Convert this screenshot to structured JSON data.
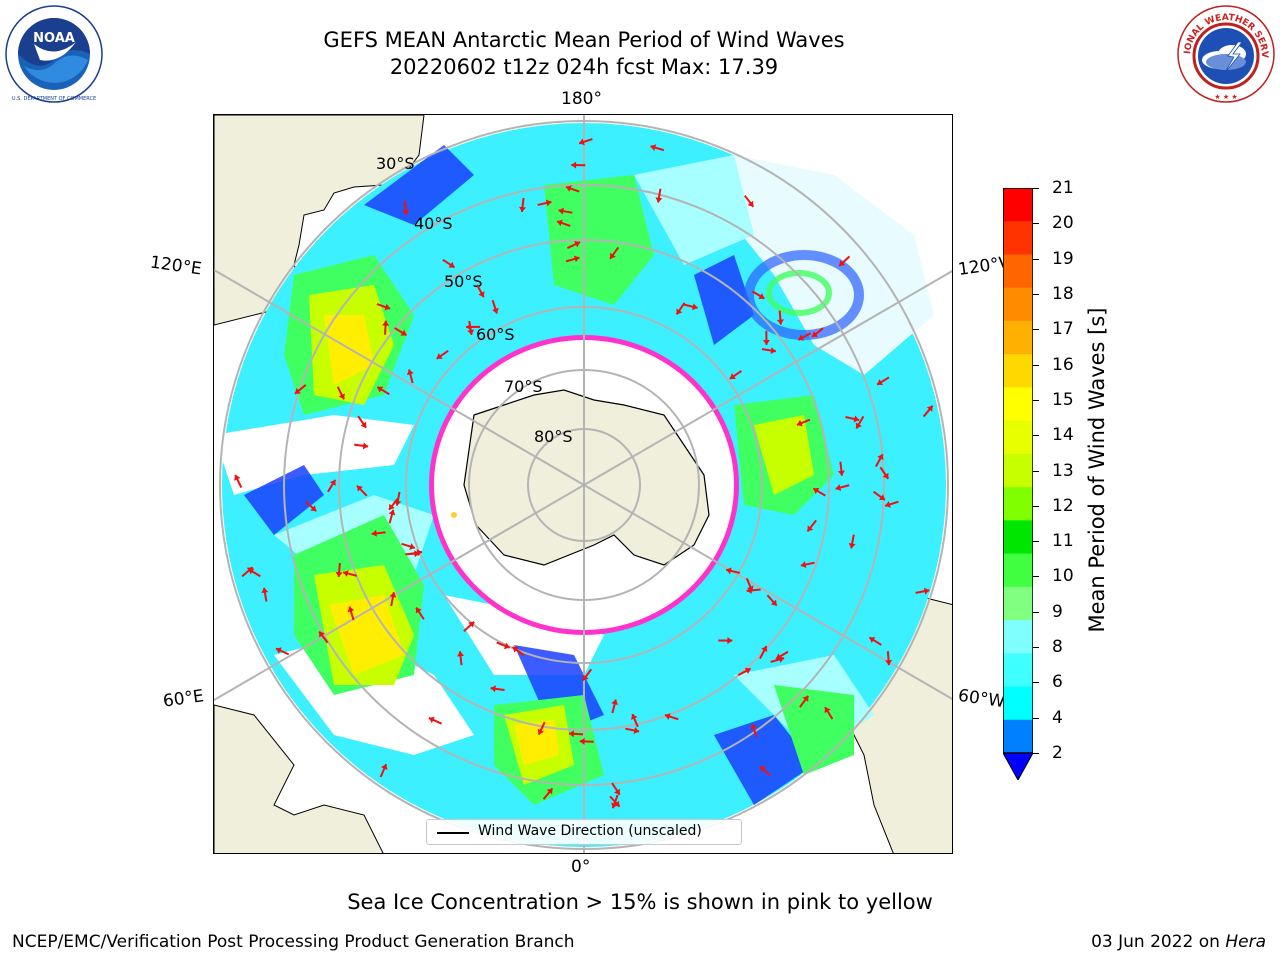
{
  "title": {
    "line1": "GEFS MEAN Antarctic Mean Period of Wind Waves",
    "line2": "20220602 t12z 024h fcst   Max: 17.39"
  },
  "logos": {
    "noaa": {
      "name": "noaa-logo",
      "text": "NOAA",
      "ring_text": "NATIONAL OCEANIC AND ATMOSPHERIC ADMINISTRATION · U.S. DEPARTMENT OF COMMERCE"
    },
    "nws": {
      "name": "nws-logo",
      "ring_text": "NATIONAL WEATHER SERVICE"
    }
  },
  "map": {
    "projection": "south-polar-stereographic",
    "lon_labels": {
      "top": "180°",
      "bottom": "0°",
      "left_upper": "120°E",
      "left_lower": "60°E",
      "right_upper": "120°W",
      "right_lower": "60°W"
    },
    "lat_labels": [
      "30°S",
      "40°S",
      "50°S",
      "60°S",
      "70°S",
      "80°S"
    ],
    "colors": {
      "land": "#efefdc",
      "ocean_blank": "#ffffff",
      "grid": "#b4b4b4",
      "arrow": "#ee1111",
      "ice_edge": "#ff33cc"
    },
    "legend": {
      "label": "Wind Wave Direction (unscaled)"
    }
  },
  "colorbar": {
    "label": "Mean Period of Wind Waves [s]",
    "ticks": [
      "21",
      "20",
      "19",
      "18",
      "17",
      "16",
      "15",
      "14",
      "13",
      "12",
      "11",
      "10",
      "9",
      "8",
      "6",
      "4",
      "2"
    ],
    "colors": [
      "#ff0000",
      "#ff3300",
      "#ff6600",
      "#ff8c00",
      "#ffb000",
      "#ffd800",
      "#ffff00",
      "#e8ff00",
      "#c8ff00",
      "#80ff00",
      "#00e600",
      "#40ff40",
      "#80ff80",
      "#80ffff",
      "#40ffff",
      "#00ffff",
      "#0080ff"
    ],
    "extend_color": "#0000ff"
  },
  "footer": {
    "note": "Sea Ice Concentration > 15% is shown in pink to yellow",
    "credit": "NCEP/EMC/Verification Post Processing Product Generation Branch",
    "date_prefix": "03 Jun 2022 on ",
    "date_machine": "Hera"
  }
}
